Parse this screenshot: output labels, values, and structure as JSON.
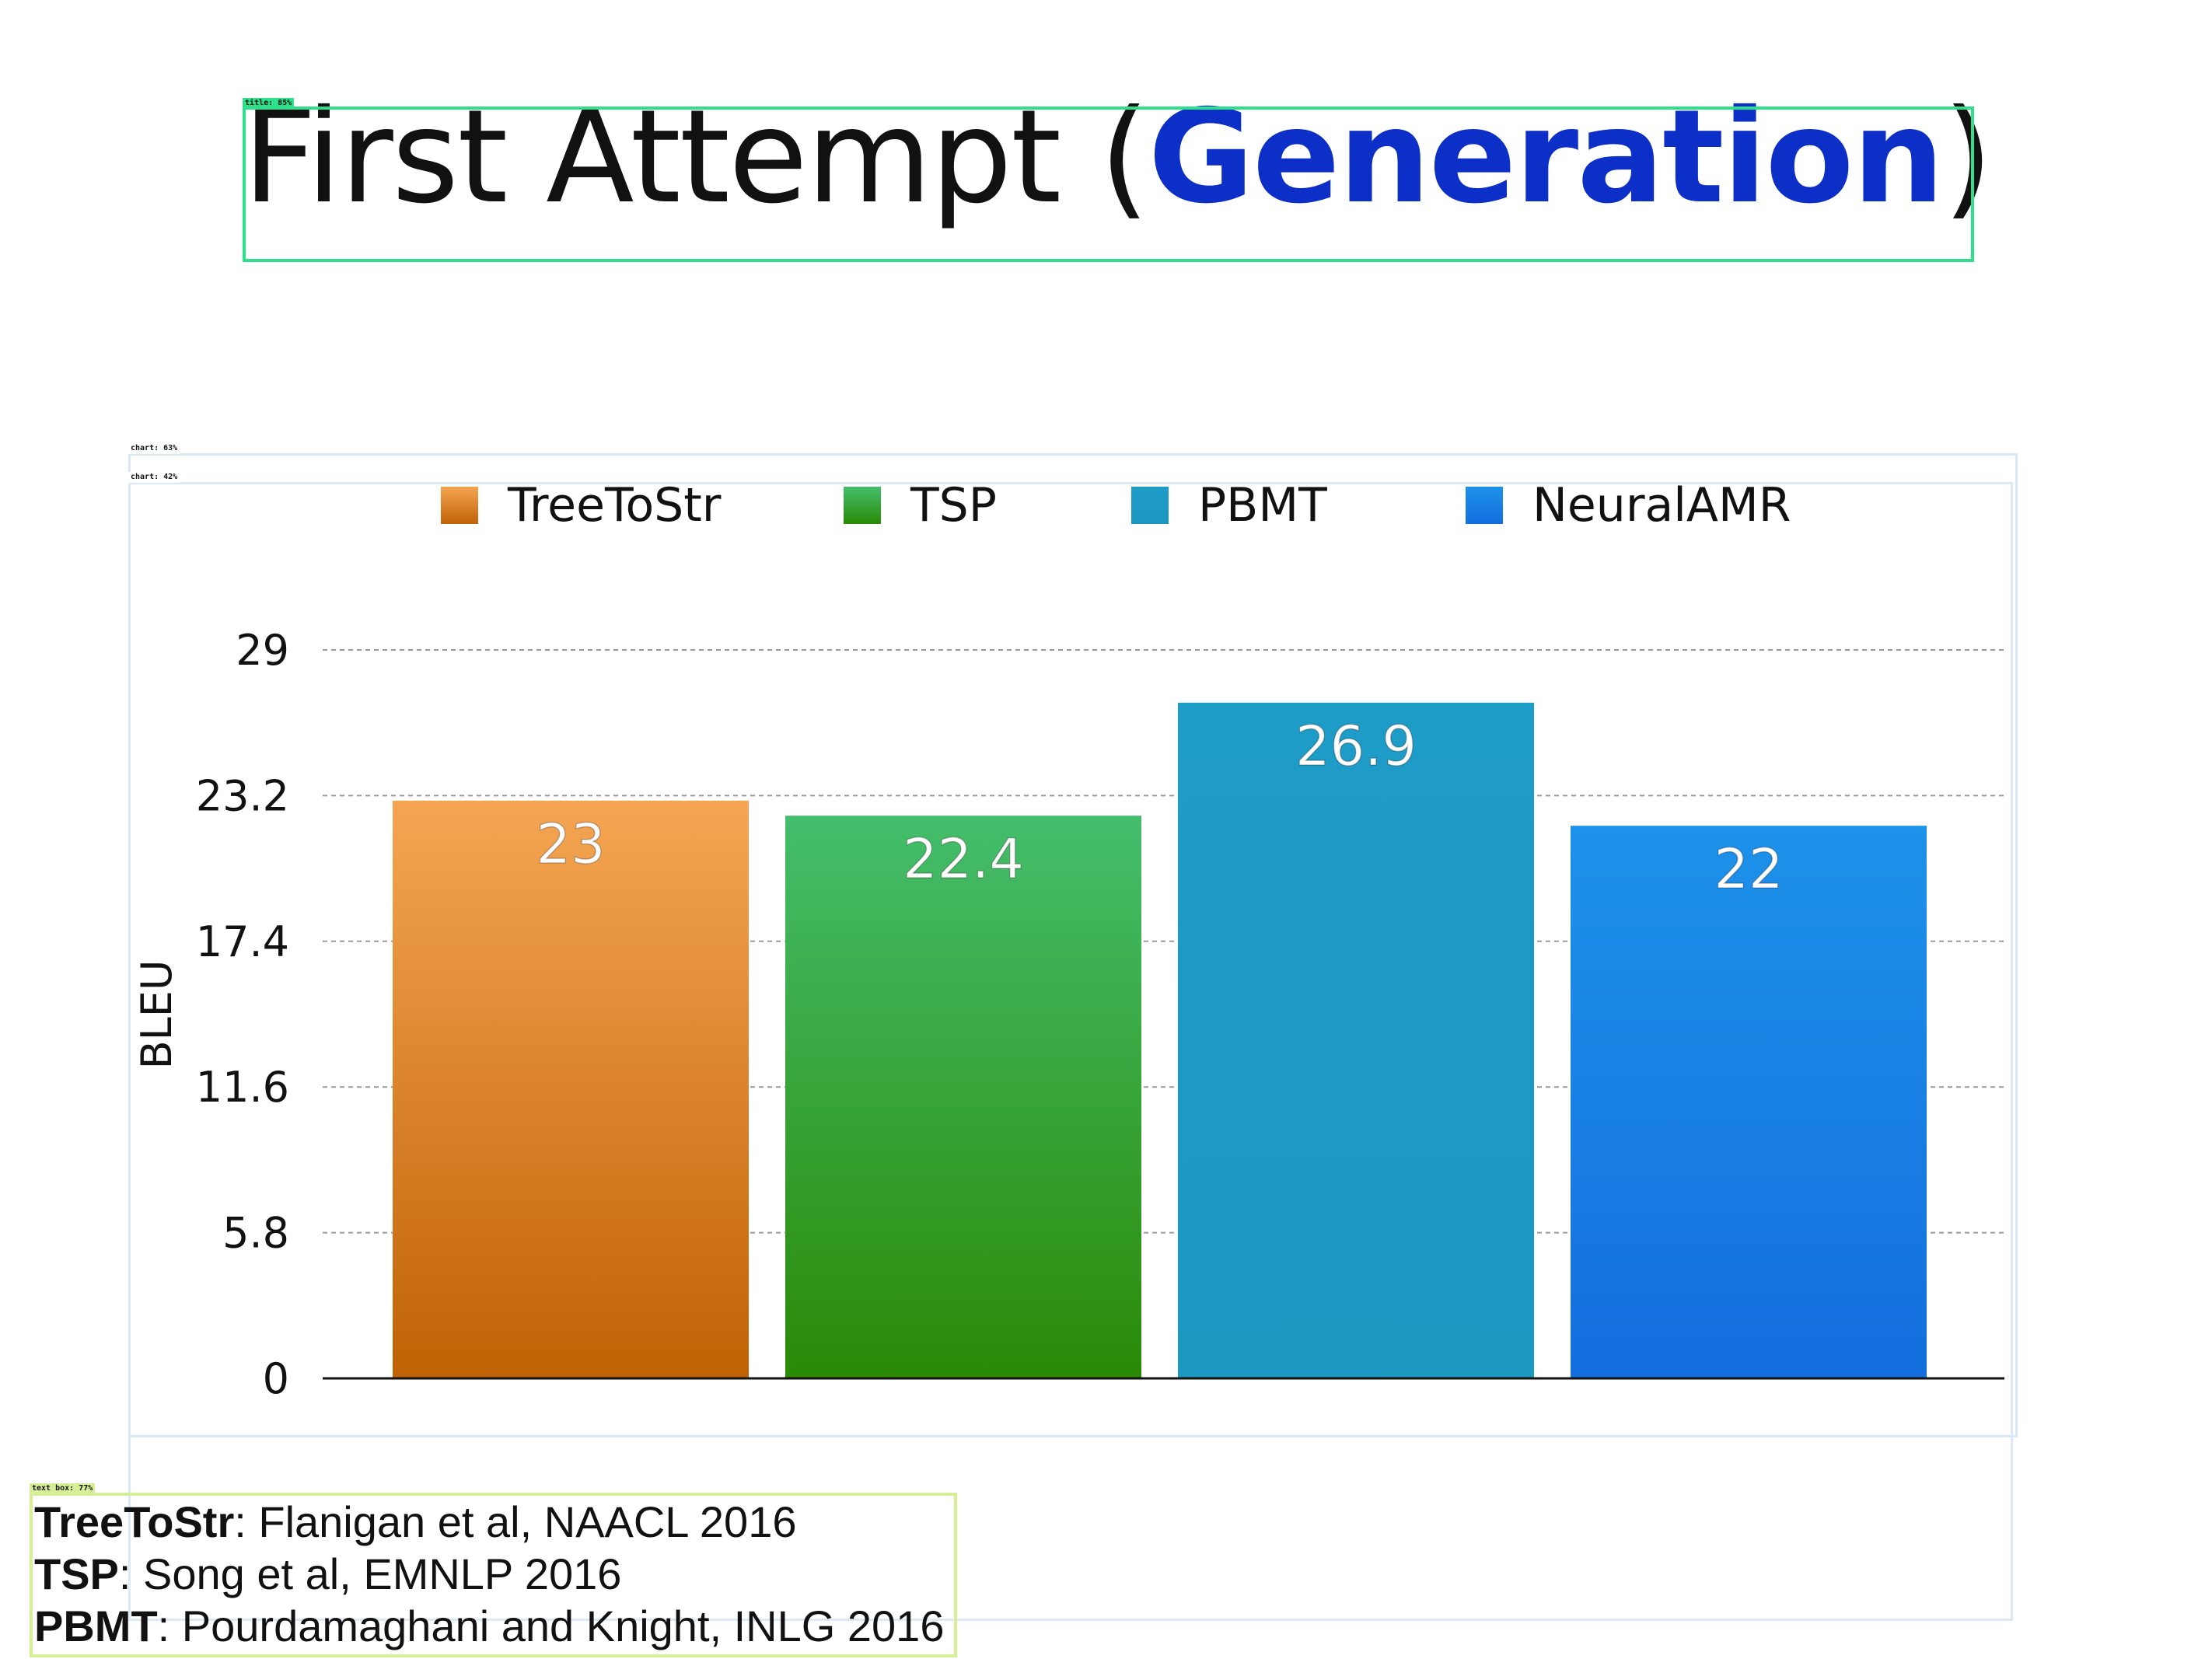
{
  "title": {
    "prefix": "First Attempt (",
    "accent": "Generation",
    "suffix": ")"
  },
  "colors": {
    "title_accent": "#0c2fc7",
    "grid": "#9a9a9a",
    "axis": "#111111",
    "value_label": "#ffffff"
  },
  "detections": {
    "title": "title: 85%",
    "chart_outer": "chart: 63%",
    "chart_inner": "chart: 42%",
    "text_box": "text box: 77%"
  },
  "chart_data": {
    "type": "bar",
    "ylabel": "BLEU",
    "ylim": [
      0,
      29
    ],
    "yticks": [
      0,
      5.8,
      11.6,
      17.4,
      23.2,
      29
    ],
    "grid": true,
    "legend": "top",
    "series": [
      {
        "name": "TreeToStr",
        "value": 23,
        "color_top": "#f5a552",
        "color_bottom": "#c06206"
      },
      {
        "name": "TSP",
        "value": 22.4,
        "color_top": "#44be6c",
        "color_bottom": "#2a8a06"
      },
      {
        "name": "PBMT",
        "value": 26.9,
        "color_top": "#1e9cc8",
        "color_bottom": "#1a98c0"
      },
      {
        "name": "NeuralAMR",
        "value": 22,
        "color_top": "#1d92ea",
        "color_bottom": "#146ede"
      }
    ]
  },
  "references": [
    {
      "name": "TreeToStr",
      "citation": ": Flanigan et al, NAACL 2016"
    },
    {
      "name": "TSP",
      "citation": ": Song et al, EMNLP 2016"
    },
    {
      "name": "PBMT",
      "citation": ": Pourdamaghani and Knight, INLG 2016"
    }
  ]
}
